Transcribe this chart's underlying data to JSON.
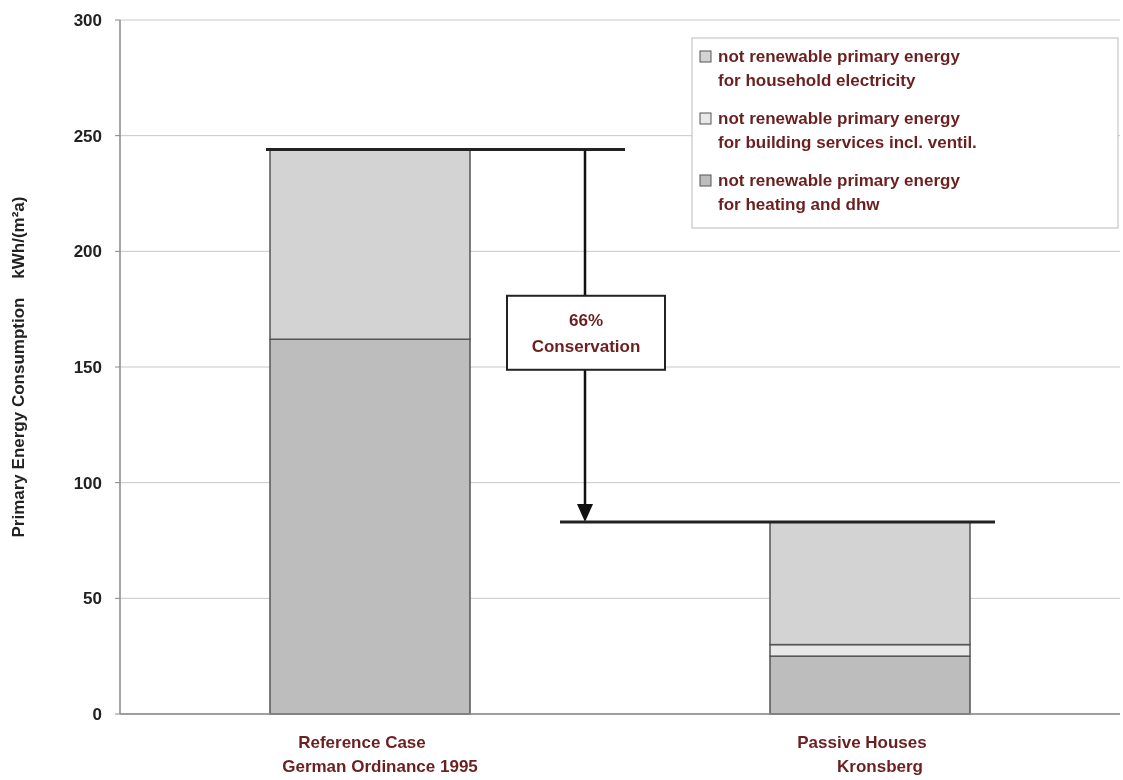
{
  "chart_data": {
    "type": "bar",
    "stacked": true,
    "ylabel": "Primary Energy Consumption    kWh/(m²a)",
    "categories": [
      "Reference Case\nGerman Ordinance 1995",
      "Passive Houses\nKronsberg"
    ],
    "series": [
      {
        "name": "not renewable primary energy\nfor heating and dhw",
        "color": "#bdbdbd",
        "values": [
          162,
          25
        ]
      },
      {
        "name": "not renewable primary energy\nfor building services incl. ventil.",
        "color": "#e8e8e8",
        "values": [
          null,
          5
        ]
      },
      {
        "name": "not renewable primary energy\nfor household electricity",
        "color": "#d3d3d3",
        "values": [
          82,
          53
        ]
      }
    ],
    "ylim": [
      0,
      300
    ],
    "yticks": [
      0,
      50,
      100,
      150,
      200,
      250,
      300
    ],
    "grid": "y",
    "legend": "top right",
    "ref_lines": [
      {
        "axis": "y",
        "value": 244
      },
      {
        "axis": "y",
        "value": 83
      }
    ],
    "annotations": [
      "66% Conservation"
    ]
  }
}
